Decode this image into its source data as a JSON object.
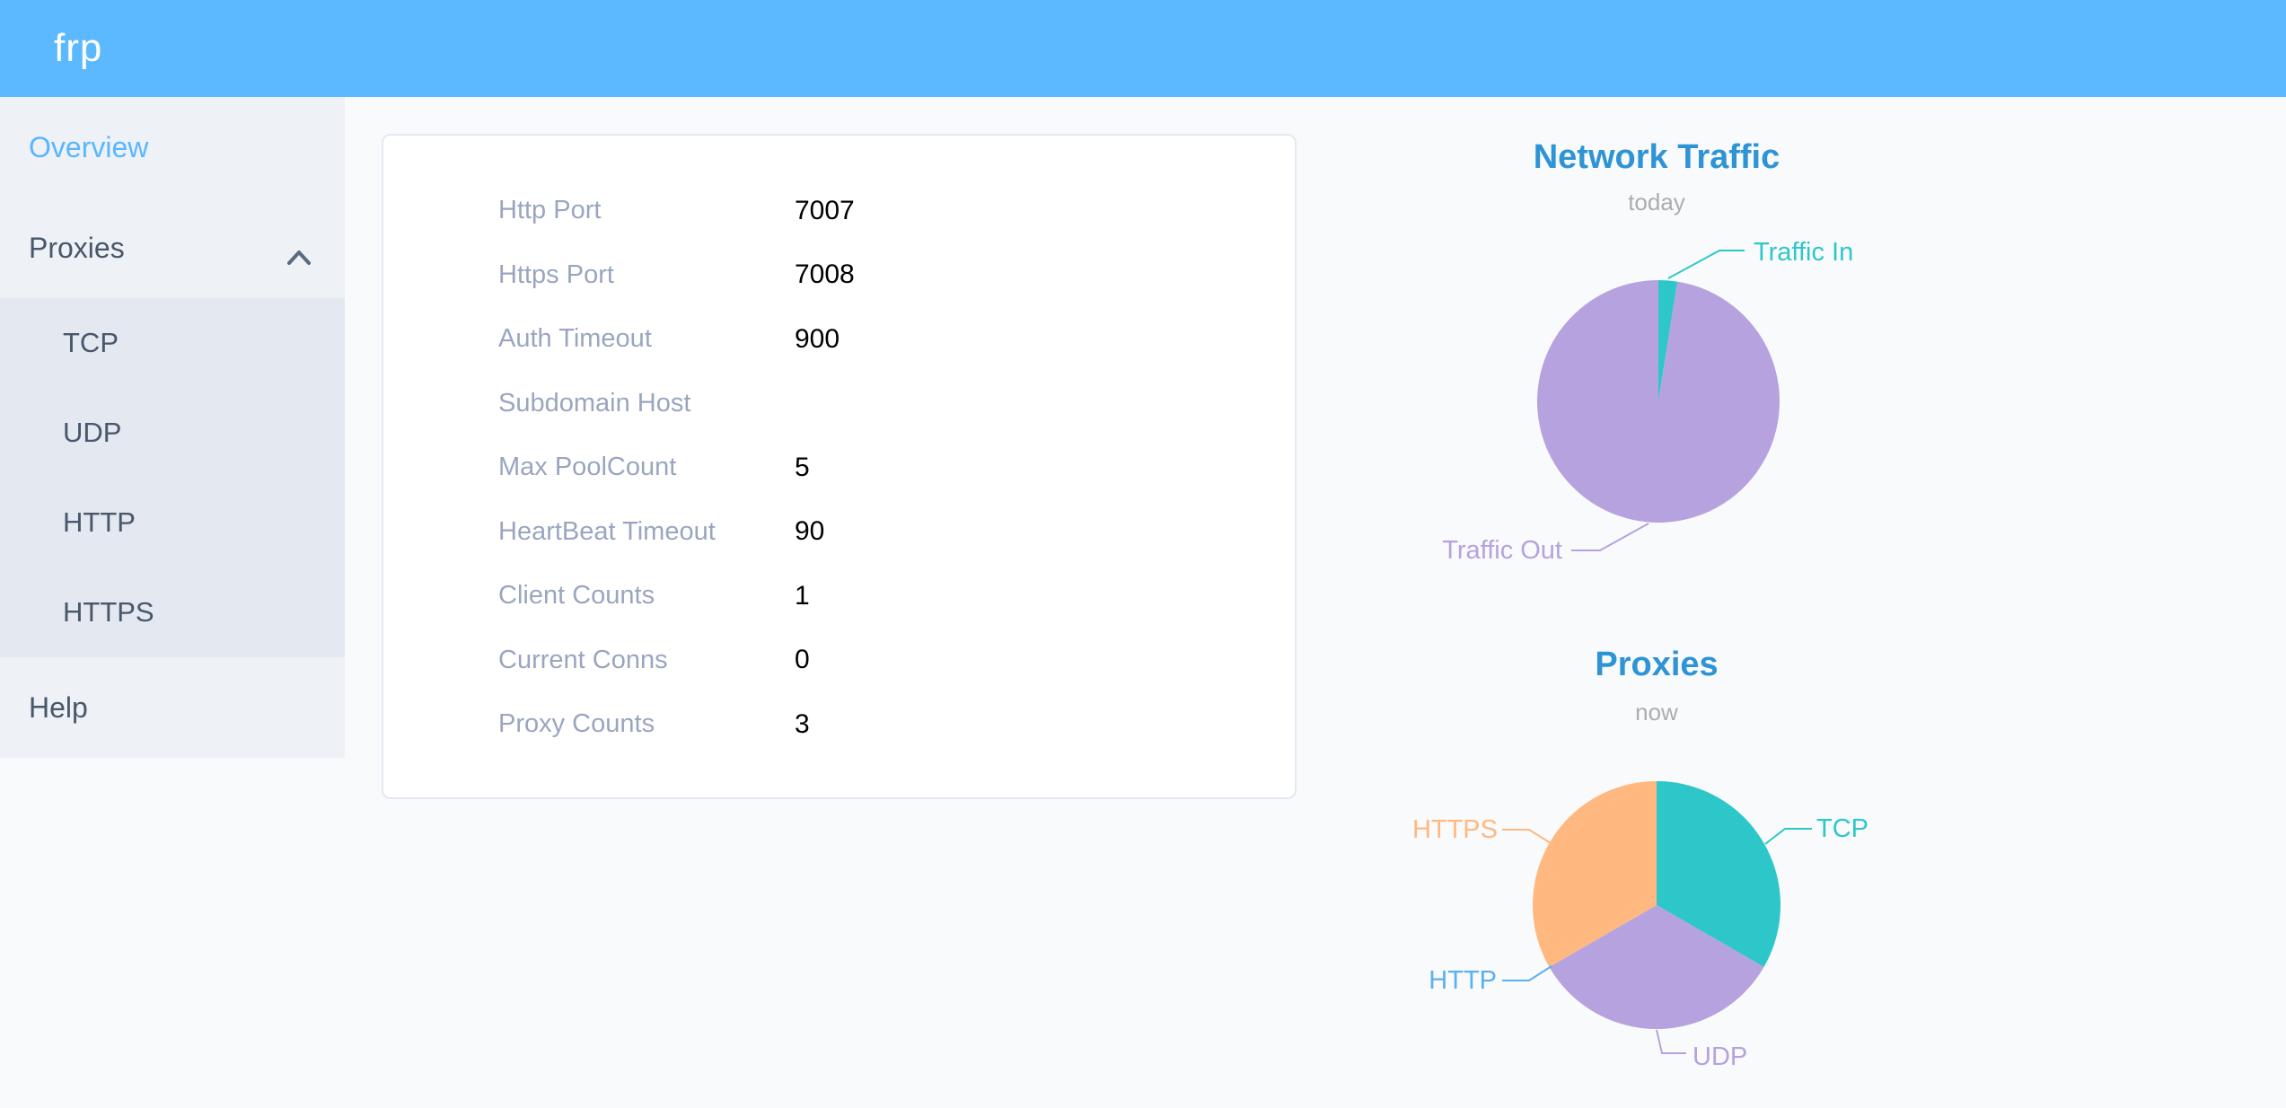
{
  "app": {
    "logo_text": "frp"
  },
  "colors": {
    "header_bg": "#5db9ff",
    "sidebar_bg": "#eef1f6",
    "submenu_bg": "#e4e8f1",
    "sidebar_text": "#48576a",
    "active_item_text": "#58b7ff",
    "chart_title": "#2e94d5",
    "chart_subtitle": "#a9aeb2",
    "config_label": "#9aa6bf",
    "config_value": "#000000"
  },
  "sidebar": {
    "items": [
      {
        "label": "Overview",
        "active": true
      },
      {
        "label": "Proxies",
        "expanded": true,
        "children": [
          {
            "label": "TCP"
          },
          {
            "label": "UDP"
          },
          {
            "label": "HTTP"
          },
          {
            "label": "HTTPS"
          }
        ]
      },
      {
        "label": "Help"
      }
    ]
  },
  "overview_panel": {
    "rows": [
      {
        "label": "Http Port",
        "value": "7007"
      },
      {
        "label": "Https Port",
        "value": "7008"
      },
      {
        "label": "Auth Timeout",
        "value": "900"
      },
      {
        "label": "Subdomain Host",
        "value": ""
      },
      {
        "label": "Max PoolCount",
        "value": "5"
      },
      {
        "label": "HeartBeat Timeout",
        "value": "90"
      },
      {
        "label": "Client Counts",
        "value": "1"
      },
      {
        "label": "Current Conns",
        "value": "0"
      },
      {
        "label": "Proxy Counts",
        "value": "3"
      }
    ]
  },
  "charts": [
    {
      "type": "pie",
      "title": "Network Traffic",
      "subtitle": "today",
      "legend_position": "callout-labels",
      "series": [
        {
          "label": "Traffic In",
          "value": 2.5,
          "color": "#2ec7c9"
        },
        {
          "label": "Traffic Out",
          "value": 97.5,
          "color": "#b6a2de"
        }
      ]
    },
    {
      "type": "pie",
      "title": "Proxies",
      "subtitle": "now",
      "legend_position": "callout-labels",
      "series": [
        {
          "label": "TCP",
          "value": 1,
          "color": "#2ec7c9"
        },
        {
          "label": "UDP",
          "value": 1,
          "color": "#b6a2de"
        },
        {
          "label": "HTTP",
          "value": 0,
          "color": "#5ab1ef"
        },
        {
          "label": "HTTPS",
          "value": 1,
          "color": "#ffb980"
        }
      ]
    }
  ]
}
